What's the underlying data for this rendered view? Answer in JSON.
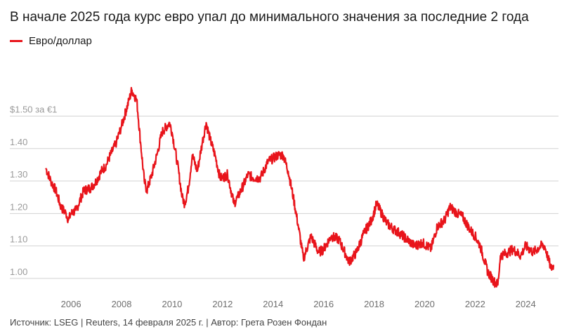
{
  "title": "В начале 2025 года курс евро упал до минимального значения за последние 2 года",
  "source": "Источник: LSEG | Reuters, 14 февраля 2025 г. | Автор: Грета Розен Фондан",
  "colors": {
    "line": "#e8141b",
    "grid": "#d3d3d3",
    "text": "#1a1a1a"
  },
  "chart_data": {
    "type": "line",
    "title": "В начале 2025 года курс евро упал до минимального значения за последние 2 года",
    "xlabel": "",
    "ylabel": "",
    "xlim": [
      2004.8,
      2025.3
    ],
    "ylim": [
      0.95,
      1.62
    ],
    "grid": true,
    "legend_position": "top-left",
    "x_ticks": [
      "2006",
      "2008",
      "2010",
      "2012",
      "2014",
      "2016",
      "2018",
      "2020",
      "2022",
      "2024"
    ],
    "y_ticks": [
      {
        "value": 1.5,
        "label": "$1.50 за €1"
      },
      {
        "value": 1.4,
        "label": "1.40"
      },
      {
        "value": 1.3,
        "label": "1.30"
      },
      {
        "value": 1.2,
        "label": "1.20"
      },
      {
        "value": 1.1,
        "label": "1.10"
      },
      {
        "value": 1.0,
        "label": "1.00"
      }
    ],
    "series": [
      {
        "name": "Евро/доллар",
        "x": [
          2005.0,
          2005.2,
          2005.4,
          2005.6,
          2005.8,
          2005.9,
          2006.0,
          2006.2,
          2006.5,
          2006.8,
          2007.0,
          2007.2,
          2007.4,
          2007.5,
          2007.8,
          2008.0,
          2008.3,
          2008.4,
          2008.6,
          2008.75,
          2008.9,
          2009.0,
          2009.2,
          2009.4,
          2009.6,
          2009.9,
          2010.0,
          2010.2,
          2010.4,
          2010.5,
          2010.65,
          2010.8,
          2011.0,
          2011.2,
          2011.35,
          2011.5,
          2011.7,
          2011.9,
          2012.0,
          2012.2,
          2012.45,
          2012.6,
          2012.9,
          2013.0,
          2013.2,
          2013.5,
          2013.8,
          2014.0,
          2014.2,
          2014.4,
          2014.6,
          2014.8,
          2015.0,
          2015.2,
          2015.5,
          2015.8,
          2016.0,
          2016.3,
          2016.6,
          2016.9,
          2017.0,
          2017.3,
          2017.6,
          2017.9,
          2018.1,
          2018.3,
          2018.5,
          2018.8,
          2019.0,
          2019.3,
          2019.6,
          2019.9,
          2020.1,
          2020.25,
          2020.5,
          2020.8,
          2021.0,
          2021.3,
          2021.5,
          2021.8,
          2022.0,
          2022.2,
          2022.5,
          2022.75,
          2022.9,
          2023.0,
          2023.3,
          2023.5,
          2023.8,
          2024.0,
          2024.3,
          2024.6,
          2024.75,
          2024.9,
          2025.0,
          2025.12
        ],
        "values": [
          1.34,
          1.3,
          1.27,
          1.22,
          1.2,
          1.18,
          1.2,
          1.21,
          1.27,
          1.28,
          1.3,
          1.33,
          1.35,
          1.37,
          1.42,
          1.47,
          1.55,
          1.58,
          1.55,
          1.42,
          1.3,
          1.27,
          1.32,
          1.38,
          1.45,
          1.48,
          1.45,
          1.36,
          1.25,
          1.23,
          1.28,
          1.38,
          1.33,
          1.42,
          1.48,
          1.43,
          1.38,
          1.31,
          1.31,
          1.32,
          1.23,
          1.25,
          1.3,
          1.32,
          1.31,
          1.31,
          1.36,
          1.37,
          1.38,
          1.38,
          1.33,
          1.25,
          1.16,
          1.06,
          1.13,
          1.08,
          1.09,
          1.13,
          1.12,
          1.07,
          1.05,
          1.08,
          1.14,
          1.18,
          1.23,
          1.2,
          1.17,
          1.15,
          1.14,
          1.12,
          1.1,
          1.11,
          1.1,
          1.09,
          1.16,
          1.18,
          1.22,
          1.2,
          1.19,
          1.15,
          1.13,
          1.1,
          1.02,
          0.99,
          0.98,
          1.07,
          1.08,
          1.09,
          1.07,
          1.1,
          1.08,
          1.1,
          1.1,
          1.06,
          1.03,
          1.04
        ]
      }
    ]
  }
}
